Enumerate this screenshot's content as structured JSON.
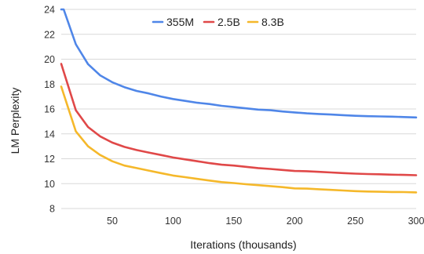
{
  "chart_data": {
    "type": "line",
    "title": "",
    "xlabel": "Iterations (thousands)",
    "ylabel": "LM Perplexity",
    "xlim": [
      8,
      300
    ],
    "ylim": [
      8,
      24
    ],
    "x_ticks": [
      50,
      100,
      150,
      200,
      250,
      300
    ],
    "y_ticks": [
      8,
      10,
      12,
      14,
      16,
      18,
      20,
      22,
      24
    ],
    "grid": "horizontal",
    "legend_position": "top",
    "x": [
      10,
      20,
      30,
      40,
      50,
      60,
      70,
      80,
      90,
      100,
      110,
      120,
      130,
      140,
      150,
      160,
      170,
      180,
      190,
      200,
      210,
      220,
      230,
      240,
      250,
      260,
      270,
      280,
      290,
      300
    ],
    "series": [
      {
        "name": "355M",
        "color": "#4f86e8",
        "values": [
          24.0,
          21.2,
          19.6,
          18.7,
          18.15,
          17.75,
          17.45,
          17.25,
          17.0,
          16.8,
          16.65,
          16.5,
          16.4,
          16.25,
          16.15,
          16.05,
          15.95,
          15.9,
          15.8,
          15.72,
          15.65,
          15.6,
          15.55,
          15.5,
          15.45,
          15.42,
          15.4,
          15.38,
          15.35,
          15.32
        ]
      },
      {
        "name": "2.5B",
        "color": "#e04848",
        "values": [
          19.0,
          15.9,
          14.55,
          13.8,
          13.3,
          12.95,
          12.7,
          12.5,
          12.3,
          12.1,
          11.95,
          11.8,
          11.65,
          11.52,
          11.45,
          11.35,
          11.25,
          11.18,
          11.1,
          11.02,
          11.0,
          10.95,
          10.9,
          10.85,
          10.8,
          10.77,
          10.75,
          10.72,
          10.7,
          10.68
        ]
      },
      {
        "name": "8.3B",
        "color": "#f5b82a",
        "values": [
          17.2,
          14.2,
          13.0,
          12.3,
          11.8,
          11.45,
          11.25,
          11.05,
          10.85,
          10.65,
          10.52,
          10.38,
          10.25,
          10.12,
          10.05,
          9.95,
          9.88,
          9.8,
          9.72,
          9.62,
          9.6,
          9.55,
          9.5,
          9.45,
          9.4,
          9.37,
          9.35,
          9.33,
          9.32,
          9.3
        ]
      }
    ]
  }
}
